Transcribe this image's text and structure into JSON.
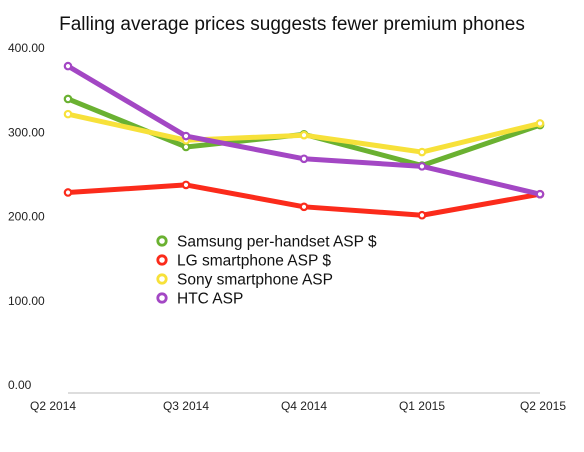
{
  "chart_data": {
    "type": "line",
    "title": "Falling average prices suggests fewer premium phones",
    "xlabel": "",
    "ylabel": "",
    "categories": [
      "Q2 2014",
      "Q3 2014",
      "Q4 2014",
      "Q1 2015",
      "Q2 2015"
    ],
    "ylim": [
      0,
      400
    ],
    "yticks": [
      0,
      100,
      200,
      300,
      400
    ],
    "ytick_labels": [
      "0.00",
      "100.00",
      "200.00",
      "300.00",
      "400.00"
    ],
    "grid": false,
    "legend_position": "center-left",
    "series": [
      {
        "name": "Samsung per-handset ASP $",
        "color": "#6ab131",
        "values": [
          349,
          292,
          307,
          270,
          318
        ]
      },
      {
        "name": "LG smartphone ASP $",
        "color": "#fb2b1b",
        "values": [
          238,
          247,
          221,
          211,
          236
        ]
      },
      {
        "name": "Sony smartphone ASP",
        "color": "#f7e13a",
        "values": [
          331,
          300,
          306,
          286,
          320
        ]
      },
      {
        "name": "HTC ASP",
        "color": "#a347c4",
        "values": [
          388,
          305,
          278,
          269,
          236
        ]
      }
    ]
  }
}
